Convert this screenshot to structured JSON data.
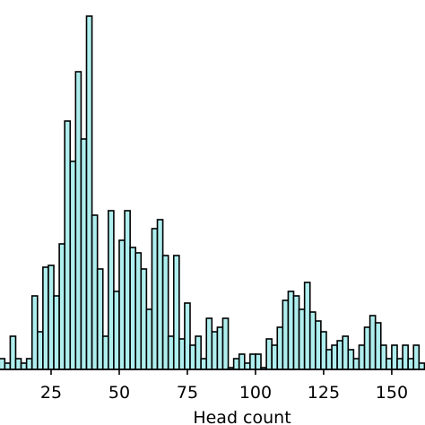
{
  "chart_data": {
    "type": "histogram",
    "xlabel": "Head count",
    "bins": [
      6,
      8,
      10,
      12,
      14,
      16,
      18,
      20,
      22,
      24,
      26,
      28,
      30,
      32,
      34,
      36,
      38,
      40,
      42,
      44,
      46,
      48,
      50,
      52,
      54,
      56,
      58,
      60,
      62,
      64,
      66,
      68,
      70,
      72,
      74,
      76,
      78,
      80,
      82,
      84,
      86,
      88,
      90,
      92,
      94,
      96,
      98,
      100,
      102,
      104,
      106,
      108,
      110,
      112,
      114,
      116,
      118,
      120,
      122,
      124,
      126,
      128,
      130,
      132,
      134,
      136,
      138,
      140,
      142,
      144,
      146,
      148,
      150,
      152,
      154,
      156,
      158,
      160,
      162
    ],
    "values": [
      1.2,
      0.7,
      3.7,
      1.2,
      0.7,
      1.2,
      8.2,
      4.2,
      11.4,
      11.6,
      8.2,
      14,
      27.7,
      23.2,
      33.2,
      25.7,
      39.4,
      17.2,
      11.2,
      3.7,
      17.7,
      8.7,
      14.4,
      17.7,
      13.6,
      13,
      11.2,
      6.7,
      15.7,
      16.7,
      12.7,
      3.7,
      12.7,
      3.4,
      7.4,
      2.7,
      3.7,
      1.2,
      5.7,
      4.2,
      4.7,
      5.7,
      0.2,
      1.2,
      1.7,
      0.7,
      1.7,
      1.7,
      0.2,
      3.4,
      2.7,
      4.7,
      7.7,
      8.7,
      8.2,
      6.7,
      9.7,
      6.4,
      5.4,
      4.2,
      2.2,
      2.7,
      3.2,
      3.7,
      2.2,
      1.2,
      2.7,
      4.7,
      6,
      5.2,
      2.7,
      1.2,
      2.7,
      1.2,
      2.7,
      1.2,
      2.7,
      0.7
    ],
    "color": "#afeeee",
    "edgecolor": "#000000",
    "xlim": [
      6.25,
      162.2
    ],
    "xticks": [
      25,
      50,
      75,
      100,
      125,
      150
    ],
    "ylim": [
      0,
      41.2
    ]
  }
}
